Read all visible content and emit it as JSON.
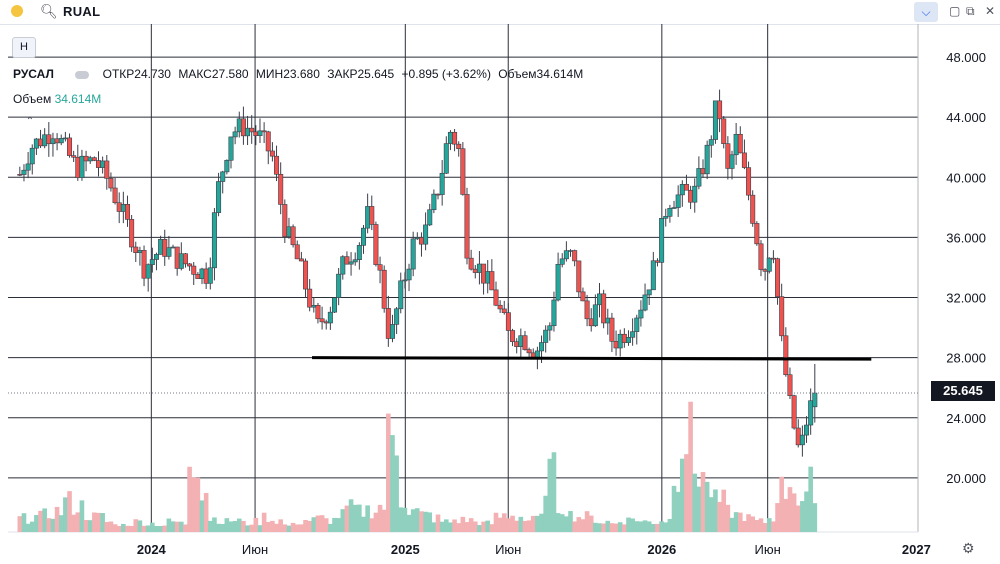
{
  "header": {
    "symbol": "RUAL"
  },
  "toolbar": {
    "h_button": "Н"
  },
  "legend": {
    "name": "РУСАЛ",
    "open_label": "ОТКР",
    "open": "24.730",
    "high_label": "МАКС",
    "high": "27.580",
    "low_label": "МИН",
    "low": "23.680",
    "close_label": "ЗАКР",
    "close": "25.645",
    "change": "+0.895 (+3.62%)",
    "vol_label": "Объем",
    "vol": "34.614M"
  },
  "volume_legend": {
    "label": "Объем",
    "value": "34.614M"
  },
  "price_tag": "25.645",
  "colors": {
    "up": "#26a69a",
    "down": "#ef5350",
    "vol_up": "#8fd1be",
    "vol_down": "#f3b1b3",
    "grid": "#2a2e39"
  },
  "chart_data": {
    "type": "candlestick",
    "title": "",
    "y_axis": {
      "ticks": [
        "20.000",
        "24.000",
        "28.000",
        "32.000",
        "36.000",
        "40.000",
        "44.000",
        "48.000"
      ],
      "range": [
        16.4,
        50.2
      ],
      "side": "right"
    },
    "x_axis": {
      "ticks": [
        {
          "label": "2024",
          "pos": 0.1575,
          "bold": true
        },
        {
          "label": "Июн",
          "pos": 0.2715,
          "bold": false
        },
        {
          "label": "2025",
          "pos": 0.4366,
          "bold": true
        },
        {
          "label": "Июн",
          "pos": 0.5497,
          "bold": false
        },
        {
          "label": "2026",
          "pos": 0.7185,
          "bold": true
        },
        {
          "label": "Июн",
          "pos": 0.8348,
          "bold": false
        },
        {
          "label": "2027",
          "pos": 0.9982,
          "bold": true
        }
      ]
    },
    "last_close": 25.645,
    "support_line": {
      "from": [
        0.3341,
        28.0
      ],
      "to": [
        0.9487,
        27.9
      ]
    },
    "trend_points": [
      [
        0.013,
        40.2
      ],
      [
        0.025,
        42.0
      ],
      [
        0.05,
        43.2
      ],
      [
        0.075,
        40.6
      ],
      [
        0.095,
        41.2
      ],
      [
        0.11,
        39.8
      ],
      [
        0.13,
        37.0
      ],
      [
        0.15,
        34.0
      ],
      [
        0.17,
        35.4
      ],
      [
        0.19,
        34.4
      ],
      [
        0.21,
        33.8
      ],
      [
        0.22,
        33.5
      ],
      [
        0.23,
        39.0
      ],
      [
        0.245,
        43.0
      ],
      [
        0.26,
        43.4
      ],
      [
        0.275,
        42.8
      ],
      [
        0.29,
        41.5
      ],
      [
        0.305,
        36.5
      ],
      [
        0.32,
        34.2
      ],
      [
        0.34,
        30.0
      ],
      [
        0.355,
        31.5
      ],
      [
        0.37,
        34.5
      ],
      [
        0.385,
        35.5
      ],
      [
        0.395,
        37.5
      ],
      [
        0.408,
        33.8
      ],
      [
        0.42,
        29.0
      ],
      [
        0.43,
        32.0
      ],
      [
        0.445,
        35.5
      ],
      [
        0.46,
        36.5
      ],
      [
        0.475,
        39.8
      ],
      [
        0.485,
        43.2
      ],
      [
        0.495,
        42.0
      ],
      [
        0.505,
        35.0
      ],
      [
        0.52,
        33.8
      ],
      [
        0.535,
        32.0
      ],
      [
        0.55,
        29.5
      ],
      [
        0.565,
        29.4
      ],
      [
        0.58,
        28.4
      ],
      [
        0.595,
        30.0
      ],
      [
        0.605,
        34.5
      ],
      [
        0.62,
        34.8
      ],
      [
        0.635,
        30.5
      ],
      [
        0.65,
        31.5
      ],
      [
        0.665,
        29.0
      ],
      [
        0.68,
        29.8
      ],
      [
        0.695,
        31.5
      ],
      [
        0.71,
        34.0
      ],
      [
        0.725,
        38.5
      ],
      [
        0.74,
        38.8
      ],
      [
        0.755,
        39.0
      ],
      [
        0.77,
        42.0
      ],
      [
        0.78,
        45.2
      ],
      [
        0.79,
        40.0
      ],
      [
        0.8,
        42.5
      ],
      [
        0.81,
        40.0
      ],
      [
        0.82,
        37.0
      ],
      [
        0.83,
        33.5
      ],
      [
        0.84,
        36.0
      ],
      [
        0.85,
        29.0
      ],
      [
        0.86,
        24.5
      ],
      [
        0.87,
        21.5
      ],
      [
        0.88,
        24.5
      ],
      [
        0.89,
        25.645
      ]
    ],
    "volume_levels": [
      0.08,
      0.09,
      0.1,
      0.12,
      0.18,
      0.15,
      0.1,
      0.09,
      0.06,
      0.04,
      0.05,
      0.06,
      0.05,
      0.04,
      0.06,
      0.05,
      0.46,
      0.25,
      0.08,
      0.06,
      0.07,
      0.05,
      0.06,
      0.09,
      0.07,
      0.04,
      0.06,
      0.07,
      0.08,
      0.07,
      0.1,
      0.14,
      0.12,
      0.13,
      0.15,
      0.54,
      0.2,
      0.12,
      0.1,
      0.08,
      0.06,
      0.07,
      0.07,
      0.06,
      0.05,
      0.09,
      0.1,
      0.09,
      0.07,
      0.08,
      0.34,
      0.15,
      0.1,
      0.09,
      0.08,
      0.06,
      0.05,
      0.07,
      0.08,
      0.06,
      0.06,
      0.07,
      0.38,
      0.56,
      0.36,
      0.25,
      0.18,
      0.12,
      0.1,
      0.08,
      0.06,
      0.08,
      0.25,
      0.3,
      0.18,
      0.28
    ]
  }
}
